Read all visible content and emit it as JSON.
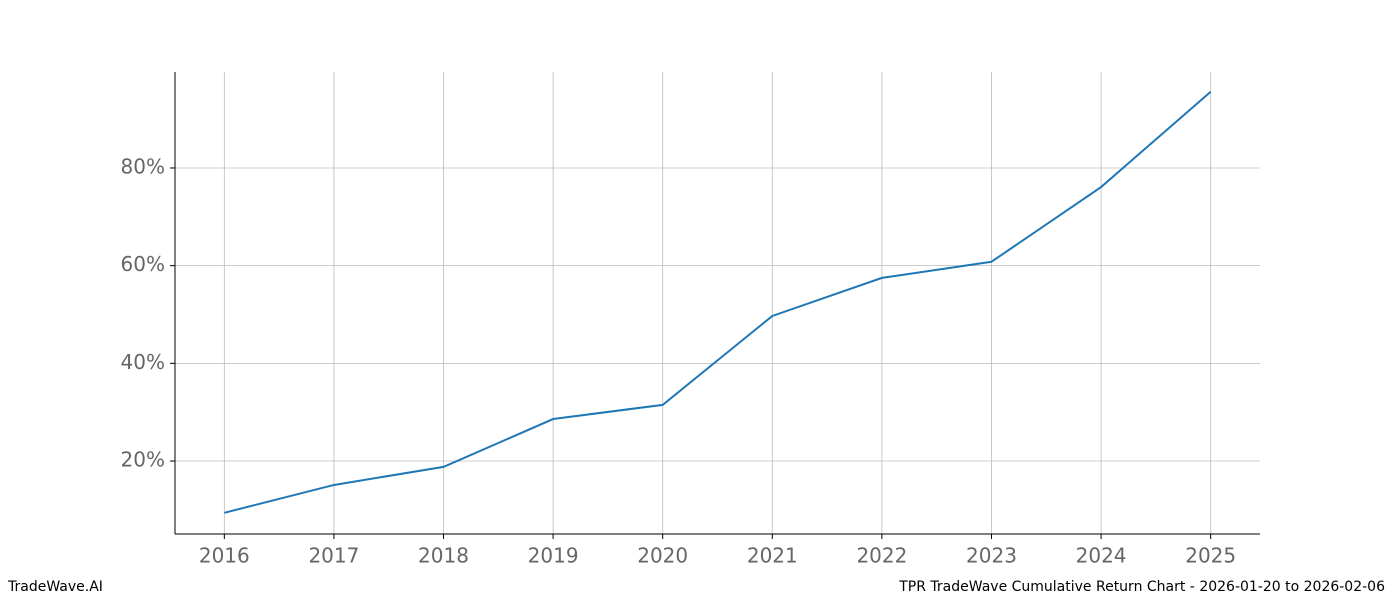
{
  "chart_data": {
    "type": "line",
    "x": [
      2016,
      2017,
      2018,
      2019,
      2020,
      2021,
      2022,
      2023,
      2024,
      2025
    ],
    "values": [
      9.4,
      15.1,
      18.8,
      28.6,
      31.5,
      49.7,
      57.5,
      60.8,
      76.1,
      95.6
    ],
    "color": "#1f77b4",
    "xlim": [
      2015.55,
      2025.45
    ],
    "xticks": [
      2016,
      2017,
      2018,
      2019,
      2020,
      2021,
      2022,
      2023,
      2024,
      2025
    ],
    "ylim": [
      5.06,
      99.65
    ],
    "yticks": [
      {
        "value": 20,
        "label": "20%"
      },
      {
        "value": 40,
        "label": "40%"
      },
      {
        "value": 60,
        "label": "60%"
      },
      {
        "value": 80,
        "label": "80%"
      }
    ],
    "grid": true,
    "footer_left": "TradeWave.AI",
    "footer_right": "TPR TradeWave Cumulative Return Chart - 2026-01-20 to 2026-02-06"
  }
}
